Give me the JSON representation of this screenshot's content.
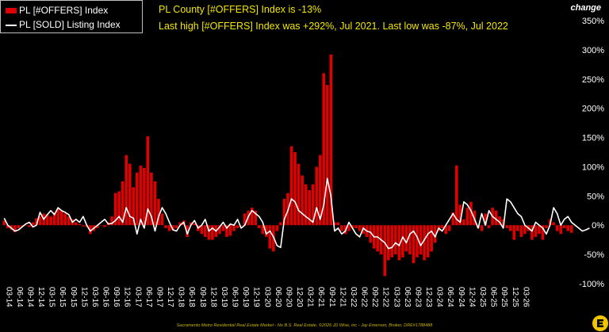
{
  "legend": {
    "offers_label": "PL [#OFFERS] Index",
    "sold_label": "PL [SOLD] Listing Index"
  },
  "notes": {
    "line1": "PL County [#OFFERS] Index is -13%",
    "line2": "Last high [#OFFERS] Index was +292%, Jul 2021. Last low was -87%, Jul 2022"
  },
  "change_label": "change",
  "footer": "Sacramento Metro Residential Real Estate Market - No B.S. Real Estate, ©2026 JD Wise, inc - Jay Emerson, Broker, DRE#1788488",
  "colors": {
    "bar": "#e00000",
    "line": "#ffffff",
    "text": "#ffffff",
    "note": "#f2e600"
  },
  "logo_icon": "e-logo-icon",
  "chart_data": {
    "type": "bar",
    "start_month": "03-14",
    "x_tick_labels": [
      "03-14",
      "06-14",
      "09-14",
      "12-14",
      "03-15",
      "06-15",
      "09-15",
      "12-15",
      "03-16",
      "06-16",
      "09-16",
      "12-16",
      "03-17",
      "06-17",
      "09-17",
      "12-17",
      "03-18",
      "06-18",
      "09-18",
      "12-18",
      "03-19",
      "06-19",
      "09-19",
      "12-19",
      "03-20",
      "06-20",
      "09-20",
      "12-20",
      "03-21",
      "06-21",
      "09-21",
      "12-21",
      "03-22",
      "06-22",
      "09-22",
      "12-22",
      "03-23",
      "06-23",
      "09-23",
      "12-23",
      "03-24",
      "06-24",
      "09-24",
      "12-24",
      "03-25",
      "06-25",
      "09-25",
      "12-25",
      "03-26"
    ],
    "y_ticks": [
      -100,
      -50,
      0,
      50,
      100,
      150,
      200,
      250,
      300,
      350
    ],
    "y_tick_labels": [
      "-100%",
      "-50%",
      "0%",
      "50%",
      "100%",
      "150%",
      "200%",
      "250%",
      "300%",
      "350%"
    ],
    "ylim": [
      -100,
      350
    ],
    "series": [
      {
        "name": "PL [#OFFERS] Index",
        "type": "bar",
        "values": [
          8,
          -5,
          -8,
          -12,
          -5,
          -2,
          0,
          -3,
          5,
          12,
          15,
          20,
          18,
          15,
          22,
          28,
          25,
          20,
          15,
          10,
          5,
          2,
          -2,
          -3,
          -15,
          -10,
          -5,
          0,
          -3,
          5,
          15,
          55,
          58,
          75,
          120,
          105,
          65,
          90,
          102,
          98,
          152,
          90,
          75,
          45,
          20,
          -5,
          -10,
          -8,
          -5,
          5,
          8,
          -20,
          5,
          3,
          -10,
          -15,
          -20,
          -25,
          -25,
          -20,
          -15,
          -10,
          -20,
          -18,
          -10,
          -5,
          0,
          20,
          25,
          30,
          25,
          -5,
          -15,
          -20,
          -40,
          -45,
          -10,
          5,
          45,
          55,
          135,
          125,
          105,
          85,
          70,
          60,
          70,
          100,
          120,
          260,
          240,
          292,
          5,
          5,
          -10,
          -15,
          -10,
          -5,
          -5,
          -10,
          -15,
          -20,
          -30,
          -40,
          -45,
          -50,
          -87,
          -60,
          -55,
          -50,
          -60,
          -55,
          -45,
          -50,
          -65,
          -55,
          -50,
          -60,
          -55,
          -45,
          -30,
          -10,
          -5,
          -15,
          -10,
          22,
          102,
          35,
          10,
          30,
          40,
          25,
          -5,
          -10,
          20,
          -5,
          30,
          25,
          15,
          10,
          -5,
          -10,
          -25,
          -10,
          -20,
          -15,
          -10,
          -25,
          -20,
          -15,
          -25,
          -5,
          10,
          5,
          -10,
          -15,
          -5,
          -10,
          -13
        ]
      },
      {
        "name": "PL [SOLD] Listing Index",
        "type": "line",
        "values": [
          12,
          0,
          -5,
          -10,
          -8,
          -3,
          2,
          5,
          -3,
          0,
          22,
          10,
          18,
          25,
          18,
          30,
          25,
          22,
          18,
          5,
          10,
          5,
          15,
          0,
          -10,
          -5,
          0,
          5,
          10,
          2,
          3,
          8,
          15,
          5,
          30,
          15,
          12,
          -15,
          10,
          -5,
          28,
          15,
          -10,
          15,
          30,
          20,
          5,
          -8,
          -10,
          0,
          5,
          -15,
          0,
          8,
          -5,
          0,
          10,
          -10,
          -5,
          -10,
          -3,
          5,
          -5,
          2,
          0,
          10,
          -5,
          0,
          15,
          25,
          20,
          15,
          5,
          -15,
          -10,
          -20,
          -35,
          -38,
          10,
          25,
          45,
          40,
          25,
          20,
          15,
          10,
          5,
          30,
          10,
          35,
          80,
          50,
          -10,
          -5,
          -15,
          -10,
          5,
          -5,
          -15,
          -20,
          -5,
          -10,
          -12,
          -20,
          -20,
          -25,
          -30,
          -40,
          -38,
          -30,
          -35,
          -20,
          -30,
          -15,
          -10,
          -20,
          -35,
          -25,
          -15,
          -10,
          -20,
          -5,
          -10,
          0,
          10,
          20,
          10,
          5,
          40,
          35,
          25,
          10,
          -5,
          20,
          0,
          25,
          15,
          10,
          5,
          -5,
          45,
          40,
          30,
          20,
          15,
          0,
          -5,
          -10,
          5,
          0,
          -5,
          -15,
          0,
          30,
          20,
          0,
          10,
          15,
          5,
          0,
          -5,
          -10,
          -8,
          -5
        ]
      }
    ],
    "grid": false,
    "legend_position": "top-left"
  }
}
